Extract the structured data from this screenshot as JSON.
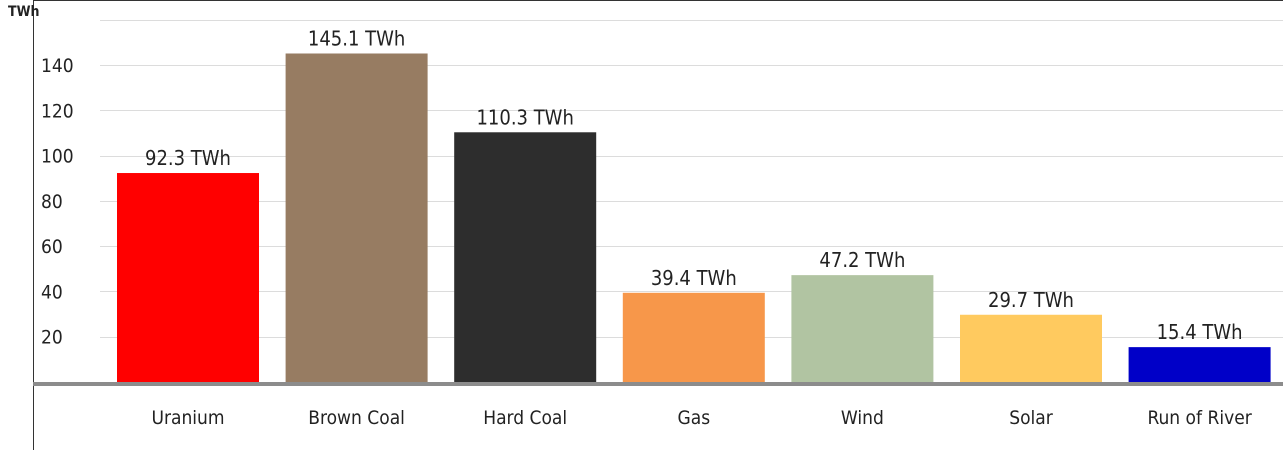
{
  "chart_data": {
    "type": "bar",
    "unit_label": "TWh",
    "categories": [
      "Uranium",
      "Brown Coal",
      "Hard Coal",
      "Gas",
      "Wind",
      "Solar",
      "Run of River"
    ],
    "values": [
      92.3,
      145.1,
      110.3,
      39.4,
      47.2,
      29.7,
      15.4
    ],
    "value_labels": [
      "92.3 TWh",
      "145.1 TWh",
      "110.3 TWh",
      "39.4 TWh",
      "47.2 TWh",
      "29.7 TWh",
      "15.4 TWh"
    ],
    "colors": [
      "#ff0000",
      "#977c62",
      "#2d2d2d",
      "#f7974a",
      "#b1c4a2",
      "#ffca5f",
      "#0000c8"
    ],
    "yticks": [
      20,
      40,
      60,
      80,
      100,
      120,
      140
    ],
    "ylim": [
      0,
      160
    ],
    "grid": true,
    "legend": "none",
    "title": "",
    "xlabel": "",
    "ylabel": ""
  }
}
